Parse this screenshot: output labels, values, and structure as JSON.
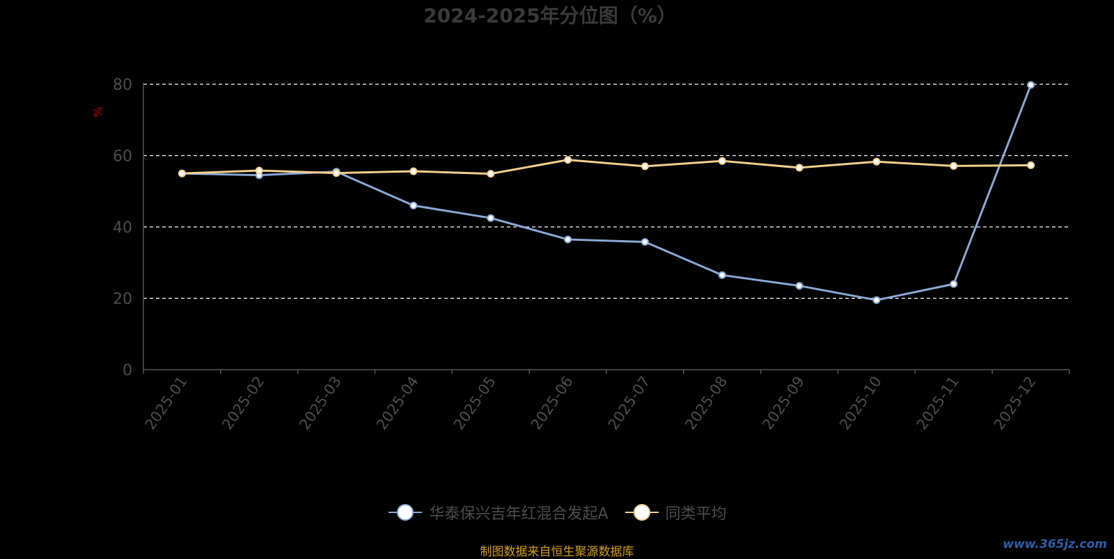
{
  "chart_data": {
    "type": "line",
    "title": "2024-2025年分位图（%）",
    "ylabel": "%",
    "ylim": [
      0,
      80
    ],
    "yticks": [
      0,
      20,
      40,
      60,
      80
    ],
    "categories": [
      "2025-01",
      "2025-02",
      "2025-03",
      "2025-04",
      "2025-05",
      "2025-06",
      "2025-07",
      "2025-08",
      "2025-09",
      "2025-10",
      "2025-11",
      "2025-12"
    ],
    "series": [
      {
        "name": "华泰保兴吉年红混合发起A",
        "color": "#8ba9d6",
        "values": [
          55.0,
          54.5,
          55.5,
          46.0,
          42.5,
          36.5,
          35.8,
          26.5,
          23.5,
          19.5,
          24.0,
          79.8
        ]
      },
      {
        "name": "同类平均",
        "color": "#f5d08e",
        "values": [
          55.0,
          55.8,
          55.1,
          55.6,
          54.9,
          58.8,
          57.0,
          58.5,
          56.6,
          58.3,
          57.1,
          57.3
        ]
      }
    ],
    "grid": "dashed-horizontal",
    "legend_position": "bottom-center"
  },
  "footer": {
    "source": "制图数据来自恒生聚源数据库",
    "watermark": "www.365jz.com"
  }
}
